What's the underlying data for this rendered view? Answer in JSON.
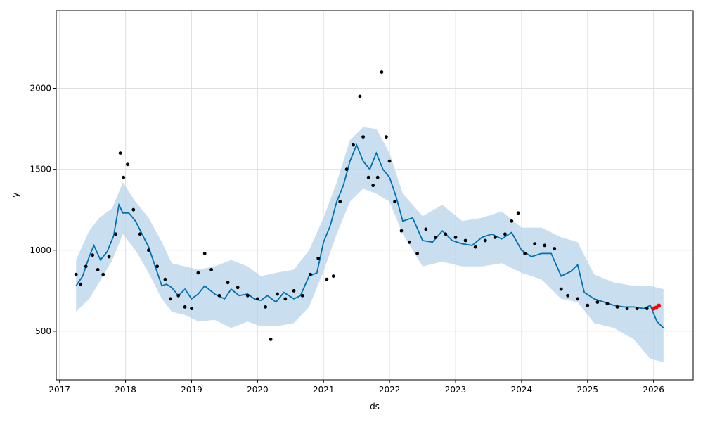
{
  "chart_data": {
    "type": "line",
    "title": "",
    "xlabel": "ds",
    "ylabel": "y",
    "xlim": [
      2016.95,
      2026.6
    ],
    "ylim": [
      200,
      2480
    ],
    "grid": true,
    "x_ticks": [
      "2017",
      "2018",
      "2019",
      "2020",
      "2021",
      "2022",
      "2023",
      "2024",
      "2025",
      "2026"
    ],
    "y_ticks": [
      "500",
      "1000",
      "1500",
      "2000"
    ],
    "colors": {
      "observed": "#000000",
      "forecast": "#0072B2",
      "interval": "#B7D3E8",
      "highlight": "#FF0000",
      "grid": "#E0E0E0"
    },
    "series": [
      {
        "role": "observed",
        "x": [
          2017.25,
          2017.32,
          2017.4,
          2017.5,
          2017.58,
          2017.66,
          2017.75,
          2017.85,
          2017.92,
          2017.97,
          2018.03,
          2018.12,
          2018.22,
          2018.35,
          2018.48,
          2018.6,
          2018.68,
          2018.8,
          2018.9,
          2019.0,
          2019.1,
          2019.2,
          2019.3,
          2019.42,
          2019.55,
          2019.7,
          2019.85,
          2020.0,
          2020.12,
          2020.2,
          2020.3,
          2020.42,
          2020.55,
          2020.68,
          2020.8,
          2020.92,
          2021.05,
          2021.15,
          2021.25,
          2021.35,
          2021.45,
          2021.55,
          2021.6,
          2021.68,
          2021.75,
          2021.82,
          2021.88,
          2021.95,
          2022.0,
          2022.08,
          2022.18,
          2022.3,
          2022.42,
          2022.55,
          2022.7,
          2022.85,
          2023.0,
          2023.15,
          2023.3,
          2023.45,
          2023.6,
          2023.75,
          2023.85,
          2023.95,
          2024.05,
          2024.2,
          2024.35,
          2024.5,
          2024.6,
          2024.7,
          2024.85,
          2025.0,
          2025.15,
          2025.3,
          2025.45,
          2025.6,
          2025.75,
          2025.9
        ],
        "y": [
          850,
          790,
          900,
          970,
          880,
          850,
          960,
          1100,
          1600,
          1450,
          1530,
          1250,
          1100,
          1000,
          900,
          820,
          700,
          720,
          650,
          640,
          860,
          980,
          880,
          720,
          800,
          770,
          720,
          700,
          650,
          450,
          730,
          700,
          750,
          720,
          850,
          950,
          820,
          840,
          1300,
          1500,
          1650,
          1950,
          1700,
          1450,
          1400,
          1450,
          2100,
          1700,
          1550,
          1300,
          1120,
          1050,
          980,
          1130,
          1080,
          1100,
          1080,
          1060,
          1020,
          1060,
          1080,
          1100,
          1180,
          1230,
          980,
          1040,
          1030,
          1010,
          760,
          720,
          700,
          660,
          680,
          670,
          650,
          640,
          640,
          640
        ]
      },
      {
        "role": "highlight",
        "x": [
          2026.0,
          2026.04,
          2026.08
        ],
        "y": [
          640,
          645,
          658
        ]
      },
      {
        "role": "forecast",
        "x": [
          2017.25,
          2017.35,
          2017.45,
          2017.52,
          2017.62,
          2017.72,
          2017.82,
          2017.9,
          2017.96,
          2018.05,
          2018.15,
          2018.25,
          2018.35,
          2018.45,
          2018.55,
          2018.62,
          2018.7,
          2018.8,
          2018.9,
          2019.0,
          2019.1,
          2019.2,
          2019.35,
          2019.5,
          2019.6,
          2019.72,
          2019.85,
          2019.95,
          2020.05,
          2020.15,
          2020.28,
          2020.4,
          2020.55,
          2020.65,
          2020.78,
          2020.9,
          2021.0,
          2021.1,
          2021.2,
          2021.3,
          2021.4,
          2021.5,
          2021.6,
          2021.7,
          2021.8,
          2021.9,
          2022.0,
          2022.1,
          2022.2,
          2022.35,
          2022.5,
          2022.65,
          2022.8,
          2022.95,
          2023.1,
          2023.25,
          2023.4,
          2023.55,
          2023.7,
          2023.85,
          2024.0,
          2024.15,
          2024.3,
          2024.45,
          2024.6,
          2024.75,
          2024.85,
          2024.95,
          2025.1,
          2025.25,
          2025.4,
          2025.55,
          2025.7,
          2025.85,
          2025.95,
          2026.05,
          2026.15
        ],
        "y": [
          780,
          840,
          960,
          1030,
          940,
          990,
          1090,
          1280,
          1230,
          1230,
          1180,
          1100,
          1020,
          900,
          780,
          790,
          770,
          720,
          760,
          700,
          730,
          780,
          730,
          700,
          760,
          720,
          730,
          700,
          690,
          720,
          680,
          740,
          700,
          720,
          840,
          860,
          1050,
          1150,
          1300,
          1400,
          1550,
          1650,
          1550,
          1500,
          1600,
          1500,
          1450,
          1330,
          1180,
          1200,
          1060,
          1050,
          1120,
          1060,
          1040,
          1030,
          1080,
          1100,
          1070,
          1110,
          1000,
          960,
          980,
          980,
          840,
          870,
          910,
          740,
          700,
          680,
          660,
          650,
          650,
          640,
          660,
          560,
          520
        ]
      },
      {
        "role": "interval_upper",
        "x": [
          2017.25,
          2017.45,
          2017.6,
          2017.8,
          2017.96,
          2018.15,
          2018.35,
          2018.55,
          2018.7,
          2018.9,
          2019.1,
          2019.35,
          2019.6,
          2019.85,
          2020.05,
          2020.28,
          2020.55,
          2020.78,
          2021.0,
          2021.2,
          2021.4,
          2021.6,
          2021.8,
          2022.0,
          2022.2,
          2022.5,
          2022.8,
          2023.1,
          2023.4,
          2023.7,
          2024.0,
          2024.3,
          2024.6,
          2024.85,
          2025.1,
          2025.4,
          2025.7,
          2025.95,
          2026.15
        ],
        "y": [
          940,
          1120,
          1200,
          1260,
          1420,
          1300,
          1200,
          1050,
          920,
          900,
          880,
          900,
          940,
          900,
          840,
          860,
          880,
          1000,
          1200,
          1420,
          1680,
          1760,
          1750,
          1600,
          1350,
          1210,
          1280,
          1180,
          1200,
          1240,
          1140,
          1140,
          1080,
          1050,
          850,
          800,
          780,
          780,
          760
        ]
      },
      {
        "role": "interval_lower",
        "x": [
          2017.25,
          2017.45,
          2017.6,
          2017.8,
          2017.96,
          2018.15,
          2018.35,
          2018.55,
          2018.7,
          2018.9,
          2019.1,
          2019.35,
          2019.6,
          2019.85,
          2020.05,
          2020.28,
          2020.55,
          2020.78,
          2021.0,
          2021.2,
          2021.4,
          2021.6,
          2021.8,
          2022.0,
          2022.2,
          2022.5,
          2022.8,
          2023.1,
          2023.4,
          2023.7,
          2024.0,
          2024.3,
          2024.6,
          2024.85,
          2025.1,
          2025.4,
          2025.7,
          2025.95,
          2026.15
        ],
        "y": [
          620,
          700,
          800,
          940,
          1100,
          1000,
          860,
          700,
          620,
          600,
          560,
          570,
          520,
          560,
          530,
          530,
          550,
          650,
          870,
          1100,
          1300,
          1380,
          1350,
          1300,
          1100,
          900,
          930,
          900,
          900,
          920,
          860,
          820,
          700,
          680,
          550,
          520,
          450,
          330,
          310
        ]
      }
    ]
  }
}
